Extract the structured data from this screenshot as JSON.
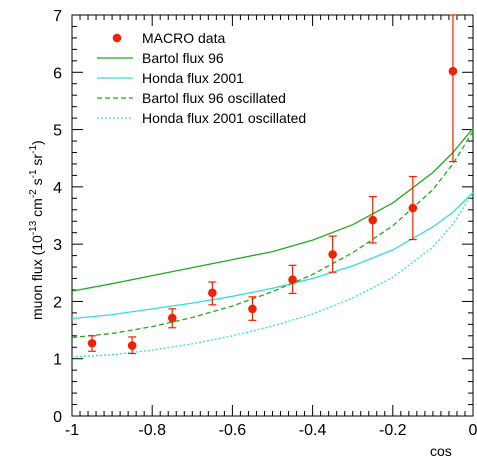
{
  "chart_data": {
    "type": "scatter",
    "xlabel": "cos",
    "ylabel": {
      "parts": [
        {
          "t": "muon flux (10",
          "sup": false
        },
        {
          "t": "-13",
          "sup": true
        },
        {
          "t": " cm",
          "sup": false
        },
        {
          "t": "-2",
          "sup": true
        },
        {
          "t": " s",
          "sup": false
        },
        {
          "t": "-1",
          "sup": true
        },
        {
          "t": " sr",
          "sup": false
        },
        {
          "t": "-1",
          "sup": true
        },
        {
          "t": ")",
          "sup": false
        }
      ]
    },
    "xlim": [
      -1,
      0
    ],
    "ylim": [
      0,
      7
    ],
    "grid": false,
    "legend_position": "top-left",
    "x_ticks": [
      {
        "v": -1,
        "label": "-1"
      },
      {
        "v": -0.8,
        "label": "-0.8"
      },
      {
        "v": -0.6,
        "label": "-0.6"
      },
      {
        "v": -0.4,
        "label": "-0.4"
      },
      {
        "v": -0.2,
        "label": "-0.2"
      },
      {
        "v": 0,
        "label": "0"
      }
    ],
    "y_ticks": [
      {
        "v": 0,
        "label": "0"
      },
      {
        "v": 1,
        "label": "1"
      },
      {
        "v": 2,
        "label": "2"
      },
      {
        "v": 3,
        "label": "3"
      },
      {
        "v": 4,
        "label": "4"
      },
      {
        "v": 5,
        "label": "5"
      },
      {
        "v": 6,
        "label": "6"
      },
      {
        "v": 7,
        "label": "7"
      }
    ],
    "points": {
      "name": "MACRO data",
      "color": "#ee2200",
      "data": [
        {
          "x": -0.95,
          "y": 1.27,
          "lo": 1.13,
          "hi": 1.4
        },
        {
          "x": -0.85,
          "y": 1.23,
          "lo": 1.09,
          "hi": 1.38
        },
        {
          "x": -0.75,
          "y": 1.71,
          "lo": 1.54,
          "hi": 1.87
        },
        {
          "x": -0.65,
          "y": 2.15,
          "lo": 1.94,
          "hi": 2.34
        },
        {
          "x": -0.55,
          "y": 1.87,
          "lo": 1.67,
          "hi": 2.08
        },
        {
          "x": -0.45,
          "y": 2.38,
          "lo": 2.14,
          "hi": 2.63
        },
        {
          "x": -0.35,
          "y": 2.82,
          "lo": 2.51,
          "hi": 3.14
        },
        {
          "x": -0.25,
          "y": 3.42,
          "lo": 3.02,
          "hi": 3.83
        },
        {
          "x": -0.15,
          "y": 3.63,
          "lo": 3.08,
          "hi": 4.18
        },
        {
          "x": -0.05,
          "y": 6.02,
          "lo": 4.44,
          "hi": 7.0
        }
      ]
    },
    "series": [
      {
        "name": "Bartol flux 96",
        "color": "#22aa22",
        "dash": "solid",
        "x": [
          -1,
          -0.9,
          -0.8,
          -0.7,
          -0.6,
          -0.5,
          -0.4,
          -0.3,
          -0.2,
          -0.1,
          -0.05,
          0
        ],
        "y": [
          2.18,
          2.31,
          2.45,
          2.59,
          2.73,
          2.87,
          3.07,
          3.34,
          3.72,
          4.25,
          4.6,
          5.02
        ]
      },
      {
        "name": "Honda flux 2001",
        "color": "#33dddd",
        "dash": "solid",
        "x": [
          -1,
          -0.9,
          -0.8,
          -0.7,
          -0.6,
          -0.5,
          -0.4,
          -0.3,
          -0.2,
          -0.1,
          -0.05,
          0
        ],
        "y": [
          1.7,
          1.77,
          1.87,
          1.97,
          2.09,
          2.23,
          2.4,
          2.62,
          2.9,
          3.3,
          3.56,
          3.9
        ]
      },
      {
        "name": "Bartol flux 96 oscillated",
        "color": "#22aa22",
        "dash": "dashed",
        "x": [
          -1,
          -0.9,
          -0.8,
          -0.7,
          -0.6,
          -0.5,
          -0.4,
          -0.3,
          -0.2,
          -0.1,
          -0.05,
          0
        ],
        "y": [
          1.37,
          1.44,
          1.56,
          1.72,
          1.92,
          2.17,
          2.47,
          2.85,
          3.32,
          3.95,
          4.4,
          4.97
        ]
      },
      {
        "name": "Honda flux 2001 oscillated",
        "color": "#33dddd",
        "dash": "dotted",
        "x": [
          -1,
          -0.9,
          -0.8,
          -0.7,
          -0.6,
          -0.5,
          -0.4,
          -0.3,
          -0.2,
          -0.1,
          -0.05,
          0
        ],
        "y": [
          1.03,
          1.07,
          1.15,
          1.26,
          1.4,
          1.57,
          1.78,
          2.06,
          2.42,
          2.95,
          3.35,
          3.9
        ]
      }
    ],
    "legend_order": [
      "MACRO data",
      "Bartol flux 96",
      "Honda flux 2001",
      "Bartol flux 96 oscillated",
      "Honda flux 2001 oscillated"
    ]
  }
}
